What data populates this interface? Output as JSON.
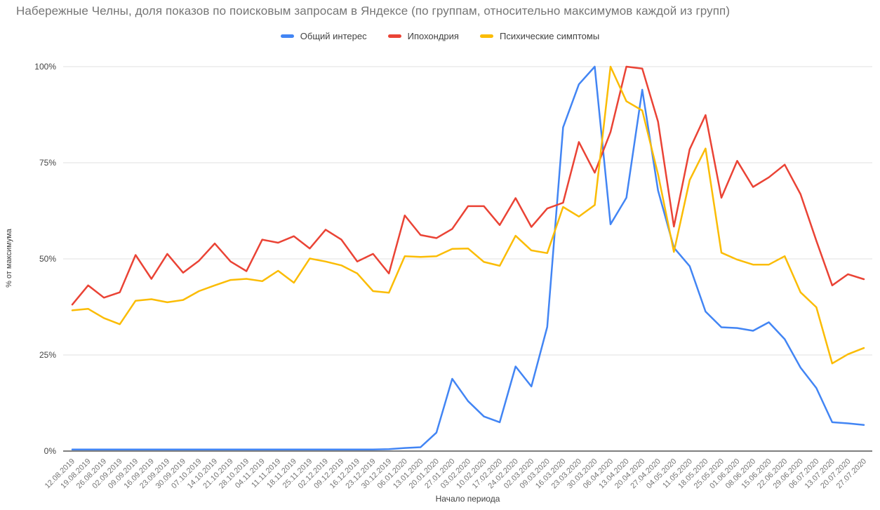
{
  "title": "Набережные Челны, доля показов по поисковым запросам в Яндексе (по группам, относительно максимумов каждой из групп)",
  "axes": {
    "y_title": "% от максимума",
    "x_title": "Начало периода",
    "y_tick_labels": [
      "100%",
      "75%",
      "50%",
      "25%",
      "0%"
    ]
  },
  "colors": {
    "blue": "#4285F4",
    "red": "#EA4335",
    "yellow": "#FBBC04",
    "gridline": "#e0e0e0",
    "axis_line": "#333333",
    "tick_text": "#757575",
    "y_tick_text": "#444444"
  },
  "chart_data": {
    "type": "line",
    "title": "Набережные Челны, доля показов по поисковым запросам в Яндексе (по группам, относительно максимумов каждой из групп)",
    "xlabel": "Начало периода",
    "ylabel": "% от максимума",
    "ylim": [
      0,
      100
    ],
    "y_ticks": [
      100,
      75,
      50,
      25,
      0
    ],
    "grid": true,
    "legend_position": "top-center",
    "x": [
      "12.08.2019",
      "19.08.2019",
      "26.08.2019",
      "02.09.2019",
      "09.09.2019",
      "16.09.2019",
      "23.09.2019",
      "30.09.2019",
      "07.10.2019",
      "14.10.2019",
      "21.10.2019",
      "28.10.2019",
      "04.11.2019",
      "11.11.2019",
      "18.11.2019",
      "25.11.2019",
      "02.12.2019",
      "09.12.2019",
      "16.12.2019",
      "23.12.2019",
      "30.12.2019",
      "06.01.2020",
      "13.01.2020",
      "20.01.2020",
      "27.01.2020",
      "03.02.2020",
      "10.02.2020",
      "17.02.2020",
      "24.02.2020",
      "02.03.2020",
      "09.03.2020",
      "16.03.2020",
      "23.03.2020",
      "30.03.2020",
      "06.04.2020",
      "13.04.2020",
      "20.04.2020",
      "27.04.2020",
      "04.05.2020",
      "11.05.2020",
      "18.05.2020",
      "25.05.2020",
      "01.06.2020",
      "08.06.2020",
      "15.06.2020",
      "22.06.2020",
      "29.06.2020",
      "06.07.2020",
      "13.07.2020",
      "20.07.2020",
      "27.07.2020"
    ],
    "series": [
      {
        "name": "Общий интерес",
        "color": "#4285F4",
        "values": [
          0.4,
          0.4,
          0.4,
          0.4,
          0.4,
          0.4,
          0.4,
          0.4,
          0.4,
          0.4,
          0.4,
          0.4,
          0.4,
          0.4,
          0.4,
          0.4,
          0.4,
          0.4,
          0.4,
          0.4,
          0.5,
          0.8,
          1.0,
          4.8,
          18.8,
          13.0,
          9.0,
          7.5,
          22.0,
          16.8,
          32.3,
          84.2,
          95.4,
          100,
          59.0,
          65.9,
          94.0,
          67.8,
          52.9,
          48.1,
          36.3,
          32.2,
          32.0,
          31.3,
          33.5,
          29.1,
          21.7,
          16.4,
          7.5,
          7.2,
          6.8
        ]
      },
      {
        "name": "Ипохондрия",
        "color": "#EA4335",
        "values": [
          38.1,
          43.1,
          39.9,
          41.3,
          51.0,
          44.8,
          51.3,
          46.4,
          49.5,
          54.0,
          49.3,
          46.8,
          55.0,
          54.2,
          55.9,
          52.7,
          57.6,
          55.0,
          49.3,
          51.3,
          46.2,
          61.3,
          56.2,
          55.4,
          57.8,
          63.7,
          63.7,
          58.8,
          65.8,
          58.3,
          63.1,
          64.6,
          80.4,
          72.4,
          83.0,
          100,
          99.5,
          85.7,
          58.4,
          78.5,
          87.4,
          65.9,
          75.5,
          68.7,
          71.2,
          74.5,
          66.8,
          54.7,
          43.1,
          46.0,
          44.7
        ]
      },
      {
        "name": "Психические симптомы",
        "color": "#FBBC04",
        "values": [
          36.6,
          37.0,
          34.6,
          33.0,
          39.1,
          39.5,
          38.7,
          39.3,
          41.6,
          43.1,
          44.5,
          44.8,
          44.2,
          46.9,
          43.8,
          50.1,
          49.3,
          48.3,
          46.2,
          41.6,
          41.2,
          50.7,
          50.5,
          50.7,
          52.6,
          52.7,
          49.2,
          48.2,
          56.0,
          52.2,
          51.5,
          63.5,
          61.0,
          64.0,
          100,
          91.0,
          88.6,
          72.0,
          51.8,
          70.5,
          78.7,
          51.6,
          49.8,
          48.5,
          48.5,
          50.7,
          41.3,
          37.4,
          22.8,
          25.2,
          26.8
        ]
      }
    ]
  }
}
